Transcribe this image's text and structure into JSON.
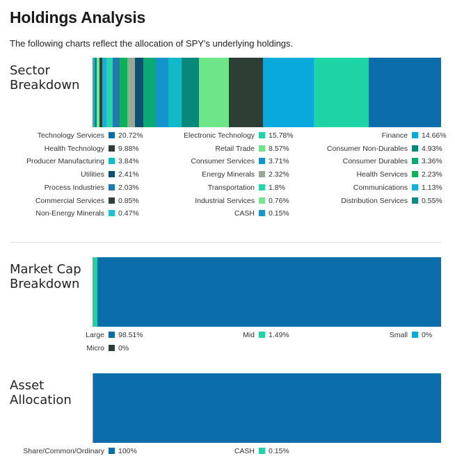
{
  "page": {
    "title": "Holdings Analysis",
    "subtitle": "The following charts reflect the allocation of SPY's underlying holdings."
  },
  "chart_data": [
    {
      "type": "bar",
      "orientation": "stacked-horizontal",
      "title": "Sector\nBreakdown",
      "categories": [
        "Technology Services",
        "Electronic Technology",
        "Finance",
        "Health Technology",
        "Retail Trade",
        "Consumer Non-Durables",
        "Producer Manufacturing",
        "Consumer Services",
        "Consumer Durables",
        "Utilities",
        "Energy Minerals",
        "Health Services",
        "Process Industries",
        "Transportation",
        "Communications",
        "Commercial Services",
        "Industrial Services",
        "Distribution Services",
        "Non-Energy Minerals",
        "CASH"
      ],
      "values": [
        20.72,
        15.78,
        14.66,
        9.88,
        8.57,
        4.93,
        3.84,
        3.71,
        3.36,
        2.41,
        2.32,
        2.23,
        2.03,
        1.8,
        1.13,
        0.85,
        0.76,
        0.55,
        0.47,
        0.15
      ],
      "value_labels": [
        "20.72%",
        "15.78%",
        "14.66%",
        "9.88%",
        "8.57%",
        "4.93%",
        "3.84%",
        "3.71%",
        "3.36%",
        "2.41%",
        "2.32%",
        "2.23%",
        "2.03%",
        "1.8%",
        "1.13%",
        "0.85%",
        "0.76%",
        "0.55%",
        "0.47%",
        "0.15%"
      ],
      "colors": [
        "#0B6EAA",
        "#1ED3A4",
        "#0AA9DB",
        "#2F3E35",
        "#6FE58A",
        "#07887A",
        "#12B9C6",
        "#1395CC",
        "#0BA974",
        "#0E4F73",
        "#9AA696",
        "#0EB058",
        "#2379B2",
        "#27D5A6",
        "#12B1DF",
        "#324136",
        "#78E593",
        "#0B8A7D",
        "#21C2CD",
        "#1A96CB"
      ],
      "stack_order": [
        "CASH",
        "Non-Energy Minerals",
        "Distribution Services",
        "Industrial Services",
        "Commercial Services",
        "Communications",
        "Transportation",
        "Process Industries",
        "Health Services",
        "Energy Minerals",
        "Utilities",
        "Consumer Durables",
        "Consumer Services",
        "Producer Manufacturing",
        "Consumer Non-Durables",
        "Retail Trade",
        "Health Technology",
        "Finance",
        "Electronic Technology",
        "Technology Services"
      ]
    },
    {
      "type": "bar",
      "orientation": "stacked-horizontal",
      "title": "Market Cap\nBreakdown",
      "categories": [
        "Large",
        "Mid",
        "Small",
        "Micro"
      ],
      "values": [
        98.51,
        1.49,
        0,
        0
      ],
      "value_labels": [
        "98.51%",
        "1.49%",
        "0%",
        "0%"
      ],
      "colors": [
        "#0B6EAA",
        "#1ED3A4",
        "#0AA9DB",
        "#2F3E35"
      ],
      "stack_order": [
        "Micro",
        "Small",
        "Mid",
        "Large"
      ]
    },
    {
      "type": "bar",
      "orientation": "stacked-horizontal",
      "title": "Asset\nAllocation",
      "categories": [
        "Share/Common/Ordinary",
        "CASH"
      ],
      "values": [
        100,
        0.15
      ],
      "value_labels": [
        "100%",
        "0.15%"
      ],
      "colors": [
        "#0B6EAA",
        "#1ED3A4"
      ],
      "stack_order": [
        "CASH",
        "Share/Common/Ordinary"
      ]
    }
  ]
}
